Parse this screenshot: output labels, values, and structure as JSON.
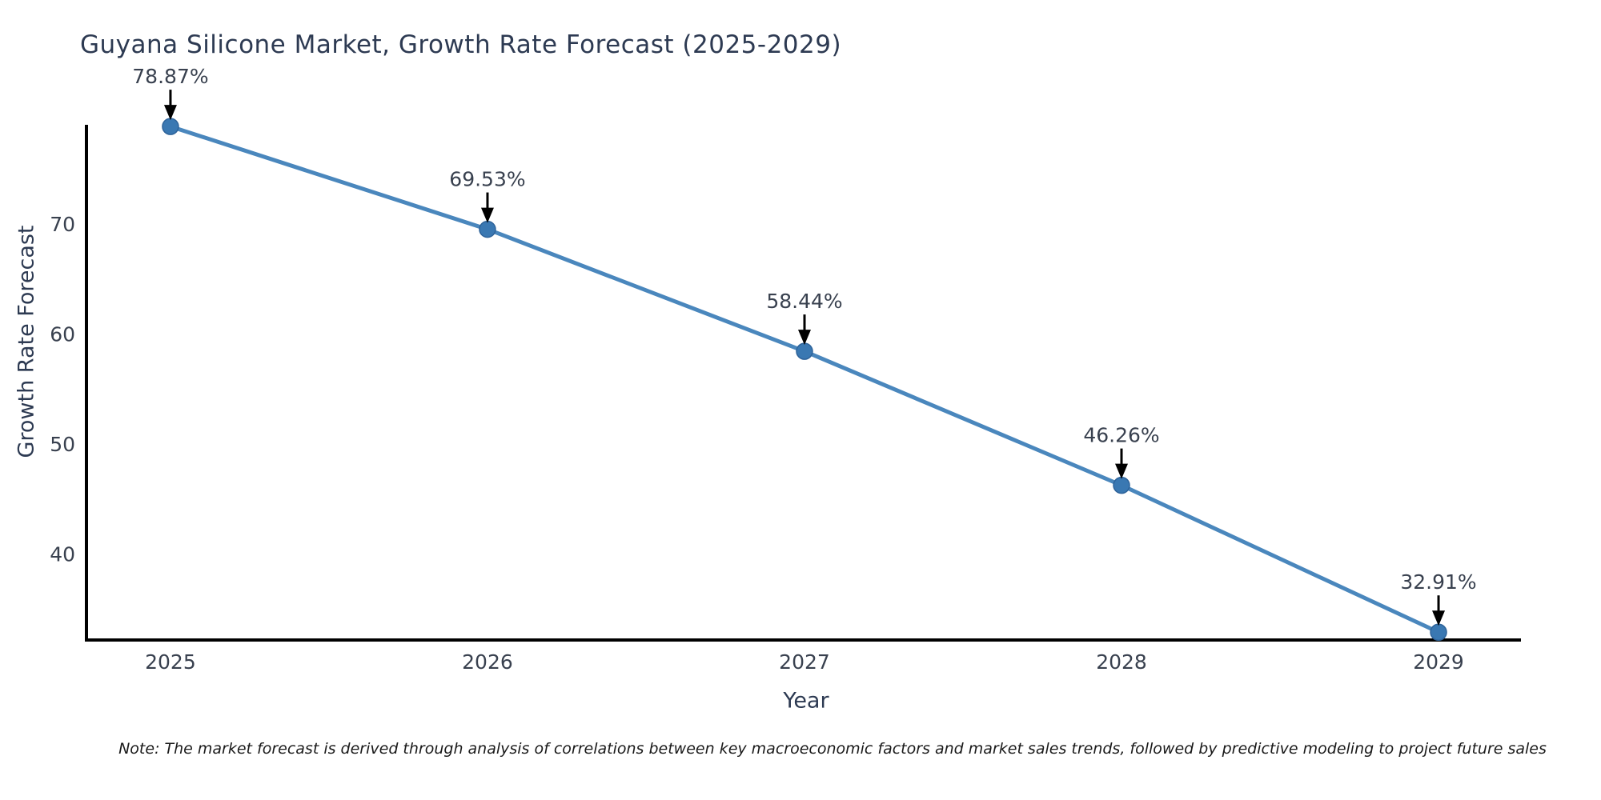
{
  "title": "Guyana Silicone Market, Growth Rate Forecast (2025-2029)",
  "footnote": "Note: The market forecast is derived through analysis of correlations between key macroeconomic factors and market sales trends, followed by predictive modeling to project future sales",
  "chart_data": {
    "type": "line",
    "title": "Guyana Silicone Market, Growth Rate Forecast (2025-2029)",
    "xlabel": "Year",
    "ylabel": "Growth Rate Forecast",
    "x": [
      2025,
      2026,
      2027,
      2028,
      2029
    ],
    "series": [
      {
        "name": "Growth Rate Forecast",
        "values": [
          78.87,
          69.53,
          58.44,
          46.26,
          32.91
        ]
      }
    ],
    "point_labels": [
      "78.87%",
      "69.53%",
      "58.44%",
      "46.26%",
      "32.91%"
    ],
    "xticks": [
      "2025",
      "2026",
      "2027",
      "2028",
      "2029"
    ],
    "yticks": [
      40,
      50,
      60,
      70
    ],
    "xlim": [
      2024.735,
      2029.26
    ],
    "ylim": [
      32.2,
      78.95
    ],
    "grid": false,
    "legend_position": "none",
    "colors": {
      "line": "#4a87bd",
      "marker_fill": "#3a78b2",
      "marker_edge": "#2e639a",
      "axis_spine": "#000000",
      "tick_text": "#39414f",
      "annotation_text": "#39414f",
      "annotation_arrow": "#000000",
      "title_text": "#2d3a52"
    }
  }
}
